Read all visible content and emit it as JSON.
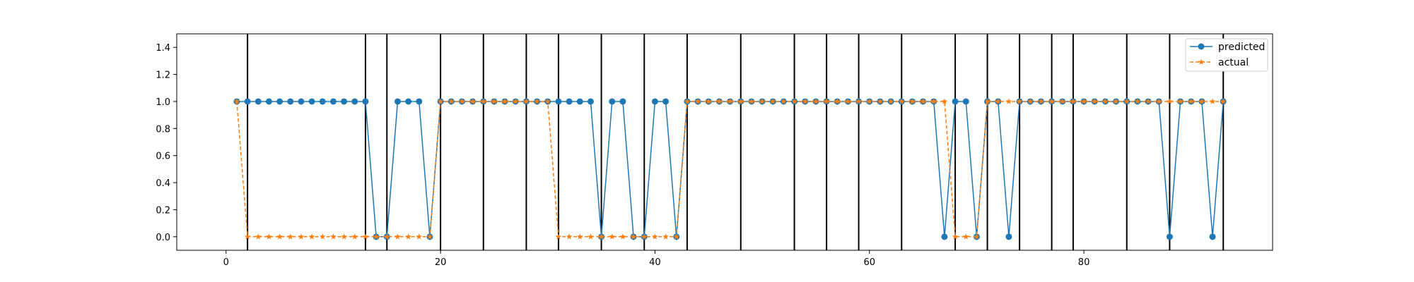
{
  "chart_data": {
    "type": "line",
    "xlim": [
      -4.6,
      97.6
    ],
    "ylim": [
      -0.1,
      1.5
    ],
    "xticks": [
      0,
      20,
      40,
      60,
      80
    ],
    "yticks": [
      0.0,
      0.2,
      0.4,
      0.6,
      0.8,
      1.0,
      1.2,
      1.4
    ],
    "ytick_labels": [
      "0.0",
      "0.2",
      "0.4",
      "0.6",
      "0.8",
      "1.0",
      "1.2",
      "1.4"
    ],
    "legend": {
      "position": "top-right"
    },
    "vertical_lines_x": [
      2,
      13,
      15,
      20,
      24,
      28,
      31,
      35,
      39,
      43,
      48,
      53,
      56,
      59,
      63,
      68,
      71,
      74,
      77,
      79,
      84,
      88,
      93
    ],
    "series": [
      {
        "name": "predicted",
        "color": "#1f77b4",
        "linestyle": "solid",
        "marker": "circle",
        "x": [
          1,
          2,
          3,
          4,
          5,
          6,
          7,
          8,
          9,
          10,
          11,
          12,
          13,
          14,
          15,
          16,
          17,
          18,
          19,
          20,
          21,
          22,
          23,
          24,
          25,
          26,
          27,
          28,
          29,
          30,
          31,
          32,
          33,
          34,
          35,
          36,
          37,
          38,
          39,
          40,
          41,
          42,
          43,
          44,
          45,
          46,
          47,
          48,
          49,
          50,
          51,
          52,
          53,
          54,
          55,
          56,
          57,
          58,
          59,
          60,
          61,
          62,
          63,
          64,
          65,
          66,
          67,
          68,
          69,
          70,
          71,
          72,
          73,
          74,
          75,
          76,
          77,
          78,
          79,
          80,
          81,
          82,
          83,
          84,
          85,
          86,
          87,
          88,
          89,
          90,
          91,
          92,
          93
        ],
        "values": [
          1,
          1,
          1,
          1,
          1,
          1,
          1,
          1,
          1,
          1,
          1,
          1,
          1,
          0,
          0,
          1,
          1,
          1,
          0,
          1,
          1,
          1,
          1,
          1,
          1,
          1,
          1,
          1,
          1,
          1,
          1,
          1,
          1,
          1,
          0,
          1,
          1,
          0,
          0,
          1,
          1,
          0,
          1,
          1,
          1,
          1,
          1,
          1,
          1,
          1,
          1,
          1,
          1,
          1,
          1,
          1,
          1,
          1,
          1,
          1,
          1,
          1,
          1,
          1,
          1,
          1,
          0,
          1,
          1,
          0,
          1,
          1,
          0,
          1,
          1,
          1,
          1,
          1,
          1,
          1,
          1,
          1,
          1,
          1,
          1,
          1,
          1,
          0,
          1,
          1,
          1,
          0,
          1
        ]
      },
      {
        "name": "actual",
        "color": "#ff7f0e",
        "linestyle": "dashed",
        "marker": "star",
        "x": [
          1,
          2,
          3,
          4,
          5,
          6,
          7,
          8,
          9,
          10,
          11,
          12,
          13,
          14,
          15,
          16,
          17,
          18,
          19,
          20,
          21,
          22,
          23,
          24,
          25,
          26,
          27,
          28,
          29,
          30,
          31,
          32,
          33,
          34,
          35,
          36,
          37,
          38,
          39,
          40,
          41,
          42,
          43,
          44,
          45,
          46,
          47,
          48,
          49,
          50,
          51,
          52,
          53,
          54,
          55,
          56,
          57,
          58,
          59,
          60,
          61,
          62,
          63,
          64,
          65,
          66,
          67,
          68,
          69,
          70,
          71,
          72,
          73,
          74,
          75,
          76,
          77,
          78,
          79,
          80,
          81,
          82,
          83,
          84,
          85,
          86,
          87,
          88,
          89,
          90,
          91,
          92,
          93
        ],
        "values": [
          1,
          0,
          0,
          0,
          0,
          0,
          0,
          0,
          0,
          0,
          0,
          0,
          0,
          0,
          0,
          0,
          0,
          0,
          0,
          1,
          1,
          1,
          1,
          1,
          1,
          1,
          1,
          1,
          1,
          1,
          0,
          0,
          0,
          0,
          0,
          0,
          0,
          0,
          0,
          0,
          0,
          0,
          1,
          1,
          1,
          1,
          1,
          1,
          1,
          1,
          1,
          1,
          1,
          1,
          1,
          1,
          1,
          1,
          1,
          1,
          1,
          1,
          1,
          1,
          1,
          1,
          1,
          0,
          0,
          0,
          1,
          1,
          1,
          1,
          1,
          1,
          1,
          1,
          1,
          1,
          1,
          1,
          1,
          1,
          1,
          1,
          1,
          1,
          1,
          1,
          1,
          1,
          1
        ]
      }
    ]
  }
}
